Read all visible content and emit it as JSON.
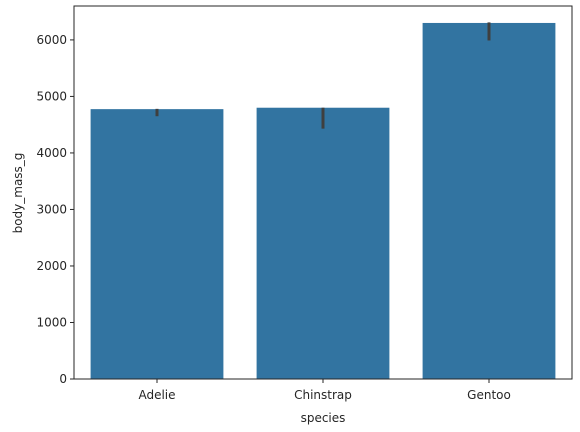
{
  "chart_data": {
    "type": "bar",
    "title": "",
    "xlabel": "species",
    "ylabel": "body_mass_g",
    "categories": [
      "Adelie",
      "Chinstrap",
      "Gentoo"
    ],
    "values": [
      4775,
      4800,
      6300
    ],
    "error_bars": [
      [
        4650,
        4780
      ],
      [
        4430,
        4800
      ],
      [
        5990,
        6310
      ]
    ],
    "ylim": [
      0,
      6600
    ],
    "yticks": [
      0,
      1000,
      2000,
      3000,
      4000,
      5000,
      6000
    ],
    "bar_color": "#3274a1",
    "error_color": "#3f3f3f",
    "grid": false,
    "legend": "none"
  }
}
